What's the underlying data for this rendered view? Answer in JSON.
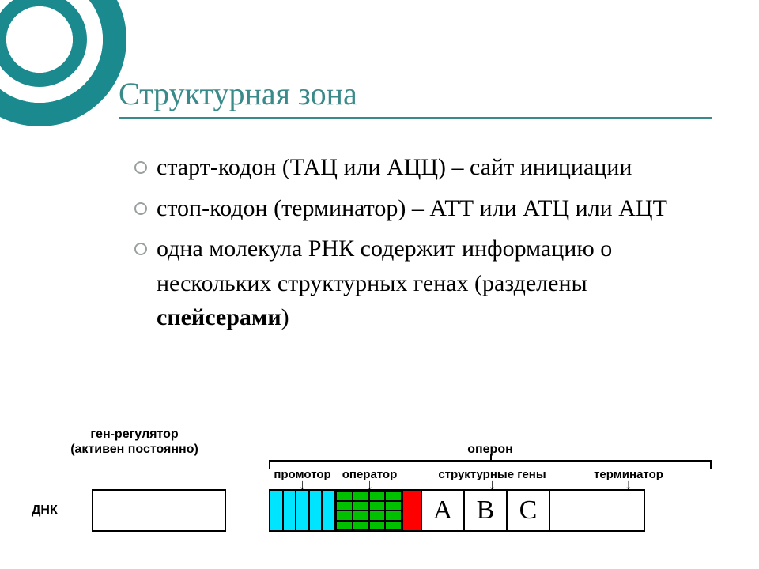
{
  "title": "Структурная зона",
  "bullets": {
    "b1": "старт-кодон (ТАЦ или АЦЦ) – сайт инициации",
    "b2": "стоп-кодон (терминатор) – АТТ или АТЦ или АЦТ",
    "b3_pre": "одна молекула РНК содержит информацию о нескольких структурных генах (разделены ",
    "b3_bold": "спейсерами",
    "b3_post": ")"
  },
  "diagram": {
    "regulator_line1": "ген-регулятор",
    "regulator_line2": "(активен постоянно)",
    "operon": "оперон",
    "promoter": "промотор",
    "operator": "оператор",
    "struct_genes": "структурные гены",
    "terminator": "терминатор",
    "dna": "ДНК",
    "genes": {
      "a": "А",
      "b": "В",
      "c": "С"
    },
    "colors": {
      "promoter": "#00e5ff",
      "operator": "#00c000",
      "operator_red": "#ff0000",
      "border": "#000000",
      "bg": "#ffffff"
    },
    "promoter_stripes": 5,
    "operator_grid": 4
  },
  "accent_color": "#1b8a8f",
  "title_color": "#3a8a8a"
}
